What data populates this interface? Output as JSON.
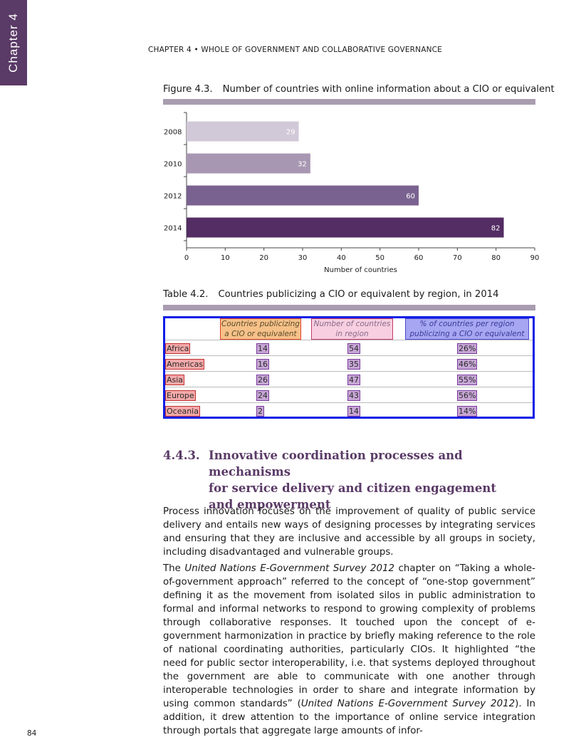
{
  "side_tab": "Chapter 4",
  "running_head": "CHAPTER 4 • WHOLE OF GOVERNMENT AND COLLABORATIVE GOVERNANCE",
  "figure": {
    "number": "Figure 4.3.",
    "title": "Number of countries with online information about a CIO or equivalent"
  },
  "chart_data": {
    "type": "bar",
    "orientation": "horizontal",
    "categories": [
      "2008",
      "2010",
      "2012",
      "2014"
    ],
    "values": [
      29,
      32,
      60,
      82
    ],
    "xlabel": "Number of countries",
    "xlim": [
      0,
      90
    ],
    "xticks": [
      0,
      10,
      20,
      30,
      40,
      50,
      60,
      70,
      80,
      90
    ],
    "colors": [
      "#d2c9d8",
      "#a897b2",
      "#7a6290",
      "#532d63"
    ],
    "grid": false,
    "legend": "none"
  },
  "table": {
    "number": "Table 4.2.",
    "title": "Countries publicizing a CIO or equivalent by region, in 2014",
    "headers": [
      [
        "Countries publicizing",
        "a CIO or equivalent"
      ],
      [
        "Number of countries",
        "in region"
      ],
      [
        "% of countries per region",
        "publicizing a CIO or equivalent"
      ]
    ],
    "rows": [
      {
        "region": "Africa",
        "publicizing": "14",
        "in_region": "54",
        "pct": "26%"
      },
      {
        "region": "Americas",
        "publicizing": "16",
        "in_region": "35",
        "pct": "46%"
      },
      {
        "region": "Asia",
        "publicizing": "26",
        "in_region": "47",
        "pct": "55%"
      },
      {
        "region": "Europe",
        "publicizing": "24",
        "in_region": "43",
        "pct": "56%"
      },
      {
        "region": "Oceania",
        "publicizing": "2",
        "in_region": "14",
        "pct": "14%"
      }
    ]
  },
  "section": {
    "number": "4.4.3.",
    "title_lines": [
      "Innovative coordination processes and mechanisms",
      "for service delivery and citizen engagement",
      "and empowerment"
    ]
  },
  "paragraph1": "Process innovation focuses on the improvement of quality of public service delivery and entails new ways of designing processes by integrating services and ensuring that they are inclusive and accessible by all groups in society, including disadvantaged and vulnerable groups.",
  "paragraph2": {
    "p1": "The ",
    "i1": "United Nations E-Government Survey 2012",
    "p2": " chapter on “Taking a whole-of-government approach” referred to the concept of “one-stop government” defining it as the movement from isolated silos in public administration to formal and informal networks to respond to growing complexity of problems through collaborative responses. It touched upon the concept of e-government harmonization in practice by briefly making reference to the role of national coordinating authorities, particularly CIOs. It highlighted “the need for public sector interoperability, i.e. that systems deployed throughout the government are able to communicate with one another through interoperable technologies in order to share and integrate information by using common standards” (",
    "i2": "United Nations E-Government Survey 2012",
    "p3": "). In addition, it drew attention to the importance of online service integration through portals that aggregate large amounts of infor-"
  },
  "page_number": "84"
}
